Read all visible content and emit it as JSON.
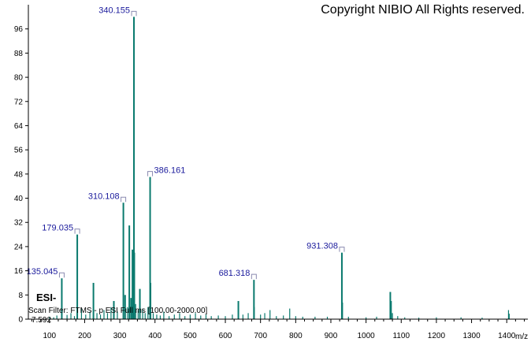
{
  "copyright": "Copyright NIBIO All Rights reserved.",
  "ionization_mode": "ESI-",
  "scan_filter": "Scan Filter: FTMS - p ESI Full ms [100.00-2000.00]",
  "retention_time": "7.592",
  "colors": {
    "peak": "#0a7a6e",
    "label": "#1a1a9c",
    "axis": "#000000"
  },
  "chart_data": {
    "type": "bar",
    "xlabel": "m/z",
    "ylabel": "",
    "xlim": [
      40,
      1460
    ],
    "ylim": [
      0,
      104
    ],
    "xticks": [
      100,
      200,
      300,
      400,
      500,
      600,
      700,
      800,
      900,
      1000,
      1100,
      1200,
      1300,
      1400
    ],
    "yticks": [
      0,
      8,
      16,
      24,
      32,
      40,
      48,
      56,
      64,
      72,
      80,
      88,
      96
    ],
    "peaks": [
      {
        "mz": 100.5,
        "i": 0.8
      },
      {
        "mz": 112.0,
        "i": 0.6
      },
      {
        "mz": 121.0,
        "i": 1.2
      },
      {
        "mz": 135.045,
        "i": 13.5,
        "label": "135.045"
      },
      {
        "mz": 150.0,
        "i": 1.4
      },
      {
        "mz": 161.0,
        "i": 2.0
      },
      {
        "mz": 171.0,
        "i": 1.0
      },
      {
        "mz": 179.035,
        "i": 28.0,
        "label": "179.035"
      },
      {
        "mz": 191.0,
        "i": 3.5
      },
      {
        "mz": 203.0,
        "i": 1.5
      },
      {
        "mz": 215.0,
        "i": 2.5
      },
      {
        "mz": 225.0,
        "i": 12.0
      },
      {
        "mz": 235.0,
        "i": 2.0
      },
      {
        "mz": 245.0,
        "i": 1.5
      },
      {
        "mz": 255.0,
        "i": 3.0
      },
      {
        "mz": 265.0,
        "i": 2.0
      },
      {
        "mz": 275.0,
        "i": 4.0
      },
      {
        "mz": 283.0,
        "i": 6.0
      },
      {
        "mz": 293.0,
        "i": 2.5
      },
      {
        "mz": 310.108,
        "i": 38.5,
        "label": "310.108"
      },
      {
        "mz": 315.0,
        "i": 8.0
      },
      {
        "mz": 322.0,
        "i": 4.0
      },
      {
        "mz": 327.0,
        "i": 31.0
      },
      {
        "mz": 332.0,
        "i": 7.0
      },
      {
        "mz": 336.0,
        "i": 23.0
      },
      {
        "mz": 340.155,
        "i": 100.0,
        "label": "340.155"
      },
      {
        "mz": 341.2,
        "i": 22.0
      },
      {
        "mz": 345.0,
        "i": 5.0
      },
      {
        "mz": 352.0,
        "i": 3.0
      },
      {
        "mz": 357.0,
        "i": 10.0
      },
      {
        "mz": 365.0,
        "i": 3.5
      },
      {
        "mz": 372.0,
        "i": 2.0
      },
      {
        "mz": 380.0,
        "i": 4.0
      },
      {
        "mz": 386.161,
        "i": 47.0,
        "label": "386.161"
      },
      {
        "mz": 387.2,
        "i": 12.0
      },
      {
        "mz": 395.0,
        "i": 2.0
      },
      {
        "mz": 405.0,
        "i": 1.5
      },
      {
        "mz": 415.0,
        "i": 1.2
      },
      {
        "mz": 425.0,
        "i": 2.5
      },
      {
        "mz": 440.0,
        "i": 1.0
      },
      {
        "mz": 455.0,
        "i": 1.5
      },
      {
        "mz": 470.0,
        "i": 2.0
      },
      {
        "mz": 485.0,
        "i": 1.0
      },
      {
        "mz": 500.0,
        "i": 1.5
      },
      {
        "mz": 515.0,
        "i": 2.0
      },
      {
        "mz": 530.0,
        "i": 1.2
      },
      {
        "mz": 545.0,
        "i": 1.5
      },
      {
        "mz": 560.0,
        "i": 1.0
      },
      {
        "mz": 580.0,
        "i": 1.2
      },
      {
        "mz": 600.0,
        "i": 1.0
      },
      {
        "mz": 620.0,
        "i": 1.5
      },
      {
        "mz": 637.0,
        "i": 6.0
      },
      {
        "mz": 650.0,
        "i": 1.5
      },
      {
        "mz": 665.0,
        "i": 2.0
      },
      {
        "mz": 681.318,
        "i": 13.0,
        "label": "681.318"
      },
      {
        "mz": 682.3,
        "i": 4.0
      },
      {
        "mz": 700.0,
        "i": 1.5
      },
      {
        "mz": 712.0,
        "i": 2.0
      },
      {
        "mz": 727.0,
        "i": 3.0
      },
      {
        "mz": 745.0,
        "i": 1.0
      },
      {
        "mz": 765.0,
        "i": 1.2
      },
      {
        "mz": 783.0,
        "i": 3.5
      },
      {
        "mz": 800.0,
        "i": 1.0
      },
      {
        "mz": 820.0,
        "i": 0.8
      },
      {
        "mz": 855.0,
        "i": 0.8
      },
      {
        "mz": 890.0,
        "i": 0.8
      },
      {
        "mz": 931.308,
        "i": 22.0,
        "label": "931.308"
      },
      {
        "mz": 932.3,
        "i": 5.5
      },
      {
        "mz": 950.0,
        "i": 0.8
      },
      {
        "mz": 1000.0,
        "i": 0.6
      },
      {
        "mz": 1030.0,
        "i": 0.8
      },
      {
        "mz": 1069.0,
        "i": 9.0
      },
      {
        "mz": 1071.0,
        "i": 6.0
      },
      {
        "mz": 1075.0,
        "i": 2.0
      },
      {
        "mz": 1090.0,
        "i": 1.0
      },
      {
        "mz": 1110.0,
        "i": 0.6
      },
      {
        "mz": 1150.0,
        "i": 0.5
      },
      {
        "mz": 1200.0,
        "i": 0.6
      },
      {
        "mz": 1270.0,
        "i": 0.6
      },
      {
        "mz": 1330.0,
        "i": 0.5
      },
      {
        "mz": 1405.0,
        "i": 3.0
      },
      {
        "mz": 1407.0,
        "i": 1.8
      }
    ]
  }
}
